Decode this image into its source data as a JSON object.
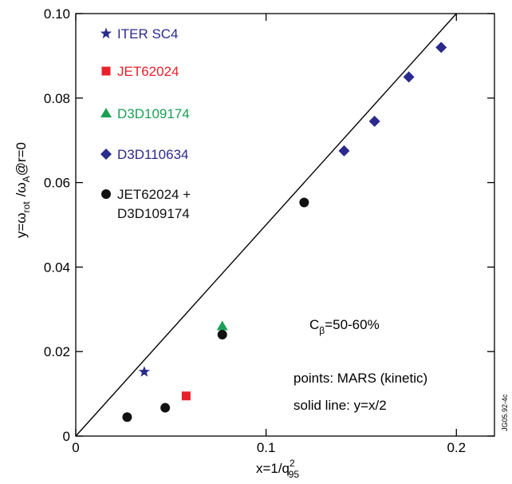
{
  "chart_data": {
    "type": "scatter",
    "xlabel": {
      "base": "x=1/q",
      "sup": "2",
      "sub": "95"
    },
    "ylabel": {
      "base": "y=ω",
      "sub1": "rot",
      "mid": "/ω",
      "sub2": "A",
      "tail": "@r=0"
    },
    "xlim": [
      0,
      0.22
    ],
    "ylim": [
      0,
      0.1
    ],
    "x_ticks": [
      0,
      0.1,
      0.2
    ],
    "x_tick_labels": [
      "0",
      "0.1",
      "0.2"
    ],
    "y_ticks": [
      0,
      0.02,
      0.04,
      0.06,
      0.08,
      0.1
    ],
    "y_tick_labels": [
      "0",
      "0.02",
      "0.04",
      "0.06",
      "0.08",
      "0.10"
    ],
    "grid": false,
    "legend_position": "top-left",
    "series": [
      {
        "name": "ITER SC4",
        "marker": "star",
        "color": "#2a2a8c",
        "points": [
          [
            0.036,
            0.0152
          ]
        ]
      },
      {
        "name": "JET62024",
        "marker": "square",
        "color": "#e8202a",
        "points": [
          [
            0.058,
            0.0095
          ]
        ]
      },
      {
        "name": "D3D109174",
        "marker": "triangle",
        "color": "#1aa055",
        "points": [
          [
            0.077,
            0.026
          ]
        ]
      },
      {
        "name": "D3D110634",
        "marker": "diamond",
        "color": "#2a2a8c",
        "points": [
          [
            0.141,
            0.0675
          ],
          [
            0.157,
            0.0745
          ],
          [
            0.175,
            0.085
          ],
          [
            0.192,
            0.092
          ]
        ]
      },
      {
        "name": [
          "JET62024 +",
          "D3D109174"
        ],
        "marker": "circle",
        "color": "#111111",
        "points": [
          [
            0.027,
            0.0045
          ],
          [
            0.047,
            0.0067
          ],
          [
            0.077,
            0.024
          ],
          [
            0.12,
            0.0553
          ]
        ]
      }
    ],
    "line": {
      "label": "solid line: y=x/2",
      "slope": 0.5,
      "intercept": 0,
      "color": "#000000"
    },
    "annotations": {
      "cbeta": {
        "base": "C",
        "sub": "β",
        "tail": "=50-60%"
      },
      "points_note": "points: MARS (kinetic)",
      "line_note": "solid line: y=x/2",
      "code": "JG05.92-4c"
    }
  }
}
